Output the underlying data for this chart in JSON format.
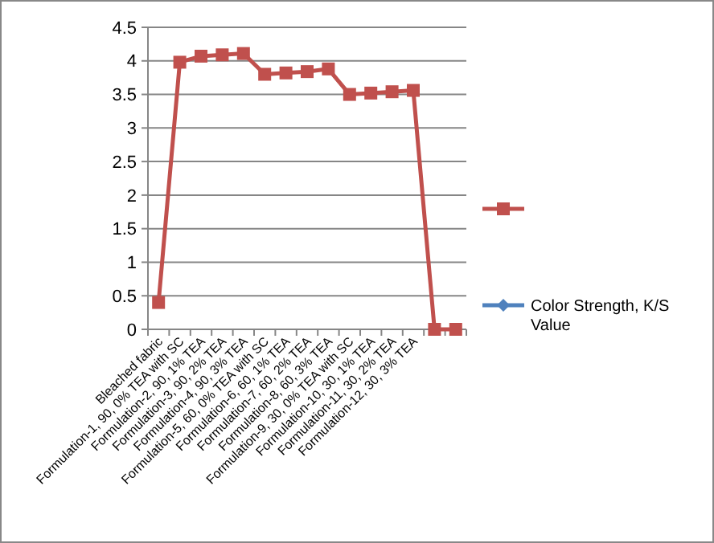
{
  "chart_data": {
    "type": "line",
    "categories": [
      "Bleached fabric",
      "Formulation-1, 90, 0% TEA with SC",
      "Formulation-2, 90, 1% TEA",
      "Formulation-3, 90, 2% TEA",
      "Formulation-4, 90, 3% TEA",
      "Formulation-5, 60, 0% TEA with SC",
      "Formulation-6, 60, 1% TEA",
      "Formulation-7, 60, 2% TEA",
      "Formulation-8, 60, 3% TEA",
      "Formulation-9, 30, 0% TEA with SC",
      "Formulation-10, 30, 1% TEA",
      "Formulation-11, 30, 2% TEA",
      "Formulation-12, 30, 3% TEA",
      null,
      null
    ],
    "series": [
      {
        "color": "#c0504d",
        "marker": "square",
        "values": [
          0.4,
          3.98,
          4.07,
          4.09,
          4.11,
          3.8,
          3.82,
          3.84,
          3.88,
          3.5,
          3.52,
          3.54,
          3.56,
          0,
          0
        ]
      },
      {
        "name": "Color Strength, K/S Value",
        "color": "#4f81bd",
        "marker": "diamond",
        "values": [
          null,
          null,
          null,
          null,
          null,
          null,
          null,
          null,
          null,
          null,
          null,
          null,
          null,
          null,
          null
        ]
      }
    ],
    "ylim": [
      0,
      4.5
    ],
    "yticks": [
      0,
      0.5,
      1,
      1.5,
      2,
      2.5,
      3,
      3.5,
      4,
      4.5
    ],
    "grid": "y",
    "legend": "right"
  }
}
